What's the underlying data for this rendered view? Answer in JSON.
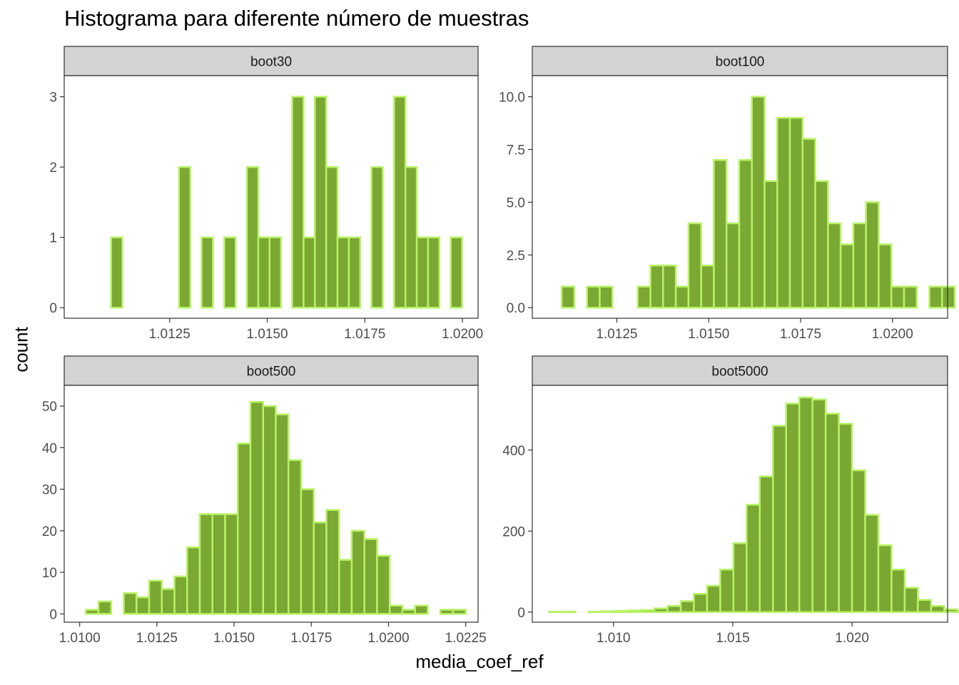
{
  "title": "Histograma para diferente número de muestras",
  "xlabel": "media_coef_ref",
  "ylabel": "count",
  "colors": {
    "bar_fill": "#7ba733",
    "bar_stroke": "#b8f266",
    "strip_fill": "#d3d3d3",
    "axis": "#333333",
    "tick_text": "#4d4d4d"
  },
  "chart_data": [
    {
      "type": "bar",
      "panel": "boot30",
      "bin_start": 1.011,
      "bin_width": 0.00029,
      "values": [
        1,
        0,
        0,
        0,
        0,
        0,
        2,
        0,
        1,
        0,
        1,
        0,
        2,
        1,
        1,
        0,
        3,
        1,
        3,
        2,
        1,
        1,
        0,
        2,
        0,
        3,
        2,
        1,
        1,
        0,
        1
      ],
      "xlim": [
        1.0098,
        1.0204
      ],
      "ylim": [
        -0.15,
        3.3
      ],
      "xticks": [
        1.0125,
        1.015,
        1.0175,
        1.02
      ],
      "xtick_labels": [
        "1.0125",
        "1.0150",
        "1.0175",
        "1.0200"
      ],
      "yticks": [
        0,
        1,
        2,
        3
      ],
      "ytick_labels": [
        "0",
        "1",
        "2",
        "3"
      ]
    },
    {
      "type": "bar",
      "panel": "boot100",
      "bin_start": 1.011,
      "bin_width": 0.000345,
      "values": [
        1,
        0,
        1,
        1,
        0,
        0,
        1,
        2,
        2,
        1,
        4,
        2,
        7,
        4,
        7,
        10,
        6,
        9,
        9,
        8,
        6,
        4,
        3,
        4,
        5,
        3,
        1,
        1,
        0,
        1,
        1
      ],
      "xlim": [
        1.0102,
        1.0215
      ],
      "ylim": [
        -0.5,
        11.0
      ],
      "xticks": [
        1.0125,
        1.015,
        1.0175,
        1.02
      ],
      "xtick_labels": [
        "1.0125",
        "1.0150",
        "1.0175",
        "1.0200"
      ],
      "yticks": [
        0,
        2.5,
        5,
        7.5,
        10
      ],
      "ytick_labels": [
        "0.0",
        "2.5",
        "5.0",
        "7.5",
        "10.0"
      ]
    },
    {
      "type": "bar",
      "panel": "boot500",
      "bin_start": 1.0102,
      "bin_width": 0.00041,
      "values": [
        1,
        3,
        0,
        5,
        4,
        8,
        6,
        9,
        16,
        24,
        24,
        24,
        41,
        51,
        50,
        48,
        37,
        30,
        22,
        25,
        13,
        20,
        18,
        14,
        2,
        1,
        2,
        0,
        1,
        1
      ],
      "xlim": [
        1.0095,
        1.0229
      ],
      "ylim": [
        -2,
        55
      ],
      "xticks": [
        1.01,
        1.0125,
        1.015,
        1.0175,
        1.02,
        1.0225
      ],
      "xtick_labels": [
        "1.0100",
        "1.0125",
        "1.0150",
        "1.0175",
        "1.0200",
        "1.0225"
      ],
      "yticks": [
        0,
        10,
        20,
        30,
        40,
        50
      ],
      "ytick_labels": [
        "0",
        "10",
        "20",
        "30",
        "40",
        "50"
      ]
    },
    {
      "type": "bar",
      "panel": "boot5000",
      "bin_start": 1.0073,
      "bin_width": 0.000552,
      "values": [
        1,
        1,
        0,
        1,
        2,
        3,
        4,
        5,
        9,
        15,
        27,
        45,
        65,
        105,
        170,
        265,
        335,
        460,
        515,
        530,
        525,
        490,
        465,
        350,
        240,
        165,
        105,
        60,
        30,
        15,
        7,
        3,
        1
      ],
      "xlim": [
        1.0066,
        1.024
      ],
      "ylim": [
        -25,
        560
      ],
      "xticks": [
        1.01,
        1.015,
        1.02
      ],
      "xtick_labels": [
        "1.010",
        "1.015",
        "1.020"
      ],
      "yticks": [
        0,
        200,
        400
      ],
      "ytick_labels": [
        "0",
        "200",
        "400"
      ]
    }
  ]
}
